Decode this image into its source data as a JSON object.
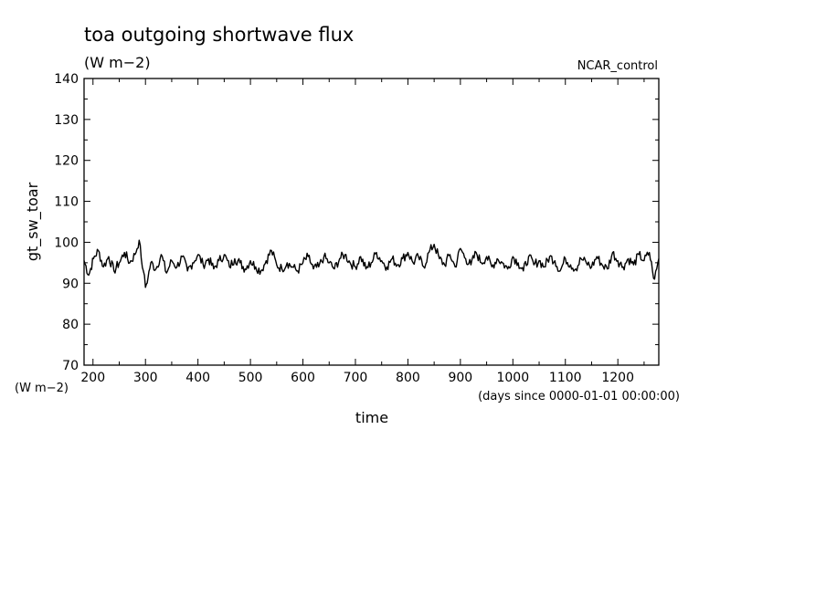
{
  "chart_data": {
    "type": "line",
    "title": "toa outgoing shortwave flux",
    "subtitle": "(W m−2)",
    "dataset_label": "NCAR_control",
    "ylabel": "gt_sw_toar",
    "yunit": "(W m−2)",
    "xlabel": "time",
    "xunit": "(days since 0000-01-01 00:00:00)",
    "xlim": [
      183,
      1278
    ],
    "ylim": [
      70,
      140
    ],
    "xticks": [
      200,
      300,
      400,
      500,
      600,
      700,
      800,
      900,
      1000,
      1100,
      1200
    ],
    "yticks": [
      70,
      80,
      90,
      100,
      110,
      120,
      130,
      140
    ],
    "grid": false,
    "series": [
      {
        "color": "#000000",
        "x": [
          183,
          192,
          201,
          210,
          220,
          230,
          240,
          250,
          260,
          270,
          280,
          288,
          292,
          296,
          300,
          305,
          310,
          320,
          330,
          340,
          350,
          360,
          370,
          380,
          390,
          400,
          410,
          420,
          430,
          440,
          450,
          460,
          470,
          480,
          490,
          500,
          510,
          520,
          530,
          540,
          550,
          560,
          570,
          580,
          590,
          600,
          610,
          620,
          630,
          640,
          650,
          660,
          670,
          680,
          690,
          700,
          710,
          720,
          730,
          740,
          750,
          760,
          770,
          780,
          790,
          800,
          810,
          820,
          830,
          840,
          850,
          860,
          870,
          880,
          890,
          900,
          910,
          920,
          930,
          940,
          950,
          960,
          970,
          980,
          990,
          1000,
          1010,
          1020,
          1030,
          1040,
          1050,
          1060,
          1070,
          1080,
          1090,
          1100,
          1110,
          1120,
          1130,
          1140,
          1150,
          1160,
          1170,
          1180,
          1190,
          1200,
          1210,
          1220,
          1230,
          1240,
          1250,
          1260,
          1266,
          1270,
          1274,
          1278
        ],
        "y": [
          95.5,
          92,
          96,
          98,
          94,
          96.5,
          93,
          95,
          97.5,
          95,
          97,
          100.5,
          96,
          93,
          89,
          91.5,
          95,
          93.5,
          97,
          92.5,
          95.5,
          94,
          96.5,
          93,
          95,
          97,
          94.5,
          96,
          93.5,
          95.5,
          97,
          94,
          96,
          95,
          93.5,
          95.5,
          94,
          93,
          95.5,
          98,
          94.5,
          93.5,
          95,
          94,
          93,
          95,
          96.5,
          93.5,
          94,
          96.5,
          95,
          93.5,
          96,
          97,
          95,
          94,
          96.5,
          93.5,
          95,
          97.5,
          95.5,
          94,
          96,
          94.5,
          96,
          97.5,
          95,
          96.5,
          94,
          97.5,
          99.5,
          96,
          94.5,
          97,
          94,
          98.5,
          96,
          94.5,
          97.5,
          95,
          96.5,
          94,
          96,
          95,
          93.5,
          96.5,
          95,
          93,
          96.5,
          94.5,
          95.5,
          94,
          96.5,
          95.5,
          93,
          96,
          94.5,
          93.5,
          96,
          95,
          94,
          96.5,
          94.5,
          93.5,
          97.5,
          95.5,
          94,
          96,
          94.5,
          97,
          95.5,
          97.5,
          93,
          91,
          93.5,
          96
        ]
      }
    ]
  }
}
